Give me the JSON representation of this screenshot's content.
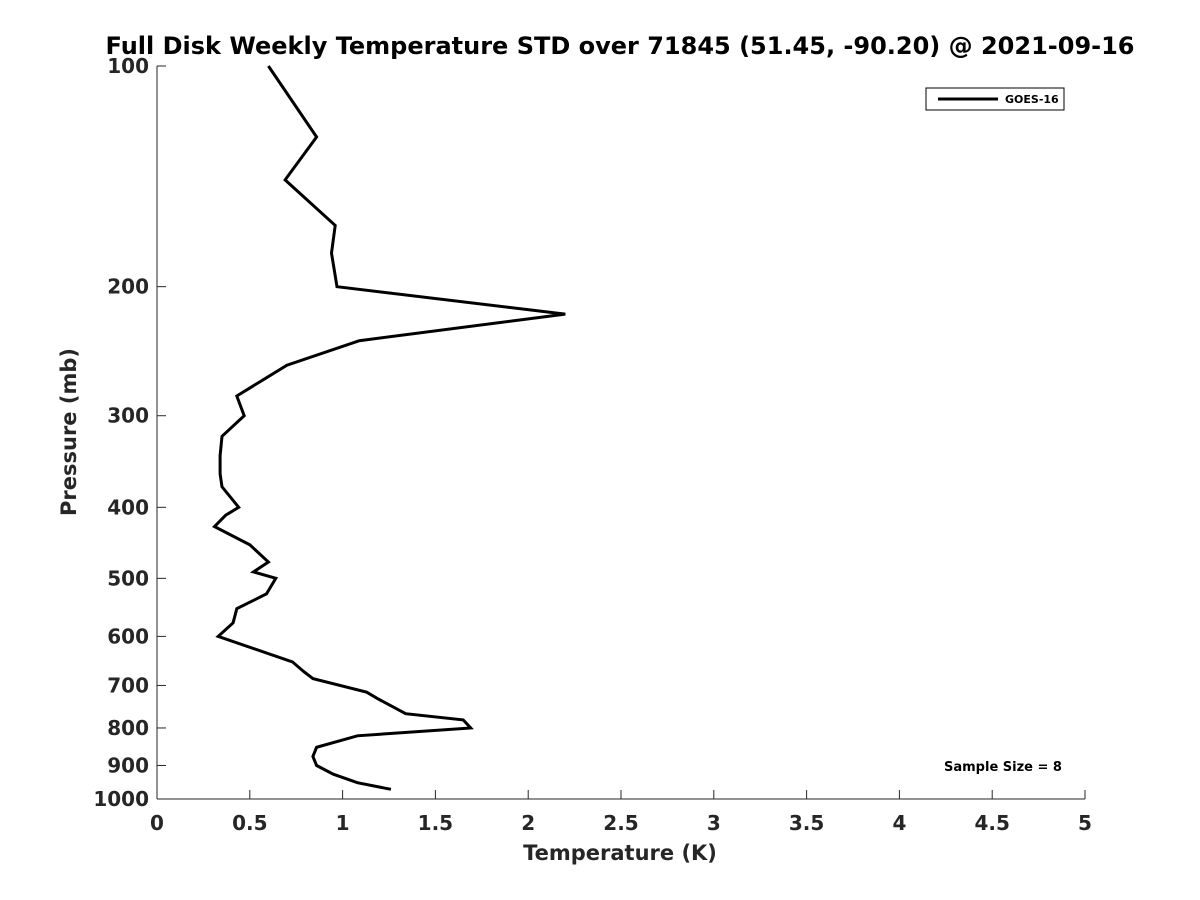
{
  "chart_data": {
    "type": "line",
    "title": "Full Disk Weekly Temperature STD over 71845 (51.45, -90.20) @ 2021-09-16",
    "xlabel": "Temperature (K)",
    "ylabel": "Pressure (mb)",
    "xlim": [
      0,
      5
    ],
    "ylim": [
      100,
      1000
    ],
    "yscale": "log",
    "yreversed": true,
    "xticks": [
      "0",
      "0.5",
      "1",
      "1.5",
      "2",
      "2.5",
      "3",
      "3.5",
      "4",
      "4.5",
      "5"
    ],
    "xtick_values": [
      0,
      0.5,
      1,
      1.5,
      2,
      2.5,
      3,
      3.5,
      4,
      4.5,
      5
    ],
    "yticks": [
      "100",
      "200",
      "300",
      "400",
      "500",
      "600",
      "700",
      "800",
      "900",
      "1000"
    ],
    "ytick_values": [
      100,
      200,
      300,
      400,
      500,
      600,
      700,
      800,
      900,
      1000
    ],
    "grid": false,
    "legend_position": "top-right",
    "annotation": "Sample Size = 8",
    "series": [
      {
        "name": "GOES-16",
        "color": "#000000",
        "points": [
          [
            0.6,
            100
          ],
          [
            0.86,
            125
          ],
          [
            0.69,
            143
          ],
          [
            0.96,
            165
          ],
          [
            0.94,
            180
          ],
          [
            0.97,
            200
          ],
          [
            2.2,
            218
          ],
          [
            1.09,
            237
          ],
          [
            0.7,
            256
          ],
          [
            0.43,
            282
          ],
          [
            0.47,
            300
          ],
          [
            0.35,
            320
          ],
          [
            0.34,
            340
          ],
          [
            0.34,
            360
          ],
          [
            0.35,
            375
          ],
          [
            0.44,
            400
          ],
          [
            0.37,
            410
          ],
          [
            0.31,
            425
          ],
          [
            0.5,
            450
          ],
          [
            0.6,
            475
          ],
          [
            0.52,
            490
          ],
          [
            0.64,
            500
          ],
          [
            0.59,
            525
          ],
          [
            0.43,
            550
          ],
          [
            0.41,
            575
          ],
          [
            0.33,
            600
          ],
          [
            0.73,
            650
          ],
          [
            0.79,
            670
          ],
          [
            0.84,
            685
          ],
          [
            1.13,
            715
          ],
          [
            1.19,
            730
          ],
          [
            1.34,
            765
          ],
          [
            1.65,
            780
          ],
          [
            1.69,
            800
          ],
          [
            1.08,
            820
          ],
          [
            0.86,
            850
          ],
          [
            0.84,
            875
          ],
          [
            0.86,
            900
          ],
          [
            0.95,
            925
          ],
          [
            1.08,
            950
          ],
          [
            1.26,
            970
          ]
        ]
      }
    ]
  }
}
